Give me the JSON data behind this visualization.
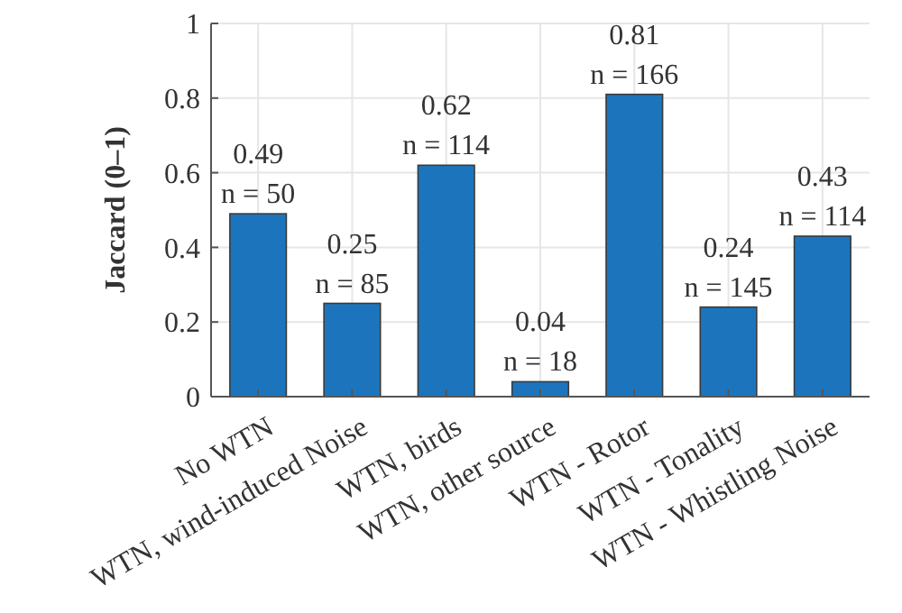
{
  "chart_data": {
    "type": "bar",
    "ylabel": "Jaccard (0–1)",
    "categories": [
      "No WTN",
      "WTN, wind-induced Noise",
      "WTN, birds",
      "WTN, other source",
      "WTN - Rotor",
      "WTN - Tonality",
      "WTN - Whistling Noise"
    ],
    "values": [
      0.49,
      0.25,
      0.62,
      0.04,
      0.81,
      0.24,
      0.43
    ],
    "value_labels": [
      "0.49\nn = 50",
      "0.25\nn = 85",
      "0.62\nn = 114",
      "0.04\nn = 18",
      "0.81\nn = 166",
      "0.24\nn = 145",
      "0.43\nn = 114"
    ],
    "color": "#1c75bc",
    "ylim": [
      0,
      1
    ],
    "yticks": [
      0,
      0.2,
      0.4,
      0.6,
      0.8,
      1
    ],
    "grid": true
  }
}
